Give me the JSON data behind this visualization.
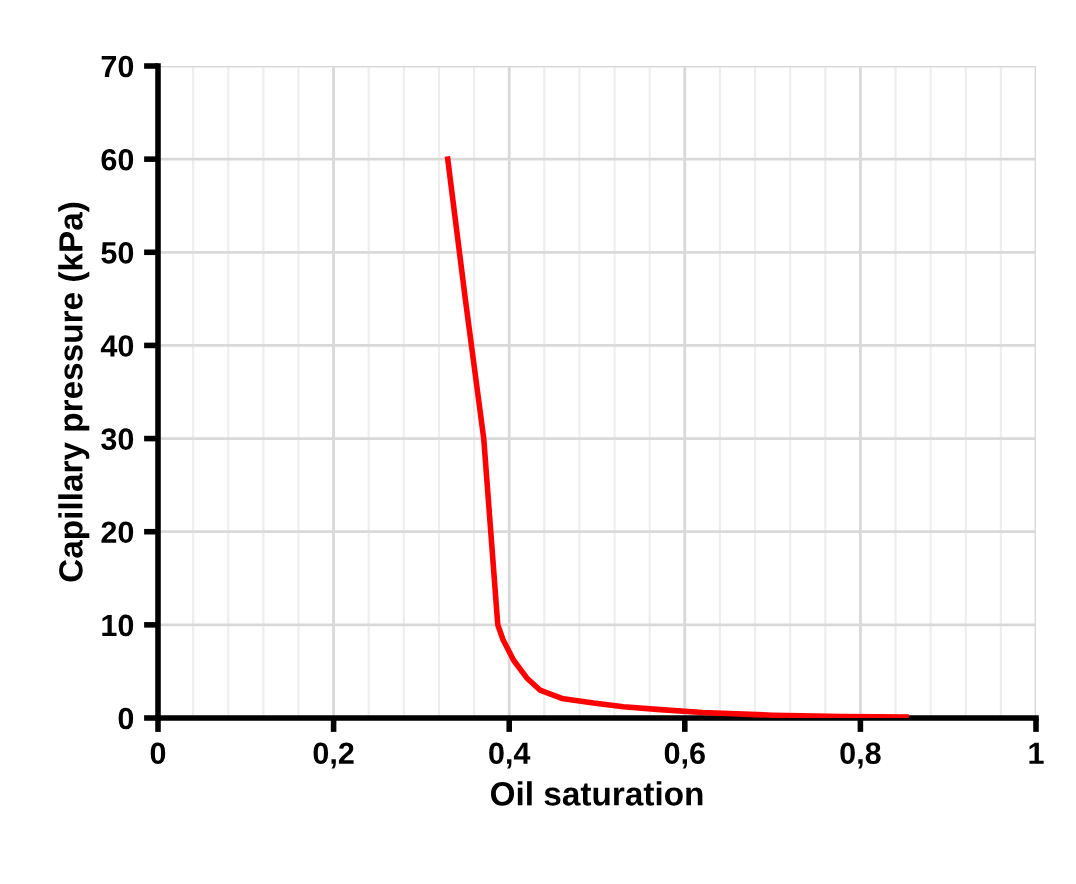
{
  "chart_data": {
    "type": "line",
    "xlabel": "Oil saturation",
    "ylabel": "Capillary pressure (kPa)",
    "series": [
      {
        "color": "#ff0000",
        "x": [
          0.33,
          0.35,
          0.371,
          0.387,
          0.393,
          0.405,
          0.42,
          0.435,
          0.46,
          0.496,
          0.53,
          0.572,
          0.62,
          0.7,
          0.78,
          0.852
        ],
        "values": [
          60,
          45,
          30,
          10,
          8.4,
          6.2,
          4.3,
          3.0,
          2.1,
          1.6,
          1.2,
          0.9,
          0.6,
          0.3,
          0.15,
          0.1
        ]
      }
    ],
    "xlim": [
      0,
      1
    ],
    "ylim": [
      0,
      70
    ],
    "xticks": [
      0,
      {
        "value": 0.2,
        "label": "0,2"
      },
      {
        "value": 0.4,
        "label": "0,4"
      },
      {
        "value": 0.6,
        "label": "0,6"
      },
      {
        "value": 0.8,
        "label": "0,8"
      },
      1
    ],
    "yticks": [
      0,
      10,
      20,
      30,
      40,
      50,
      60,
      70
    ],
    "grid": true,
    "marker": "none",
    "line_style": "solid"
  }
}
